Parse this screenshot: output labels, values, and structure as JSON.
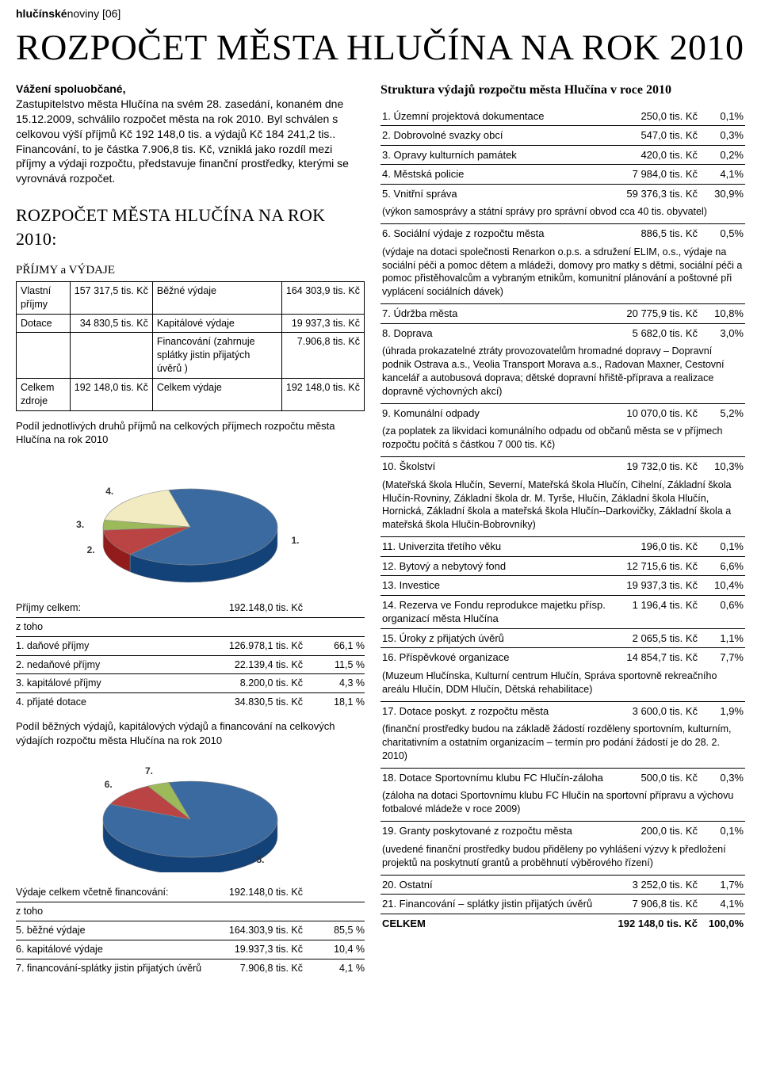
{
  "masthead": {
    "bold": "hlučínské",
    "rest": "noviny [06]"
  },
  "title": "ROZPOČET MĚSTA HLUČÍNA NA ROK 2010",
  "intro": {
    "greeting": "Vážení spoluobčané,",
    "body": "Zastupitelstvo města Hlučína na svém 28. zasedání, konaném dne 15.12.2009, schválilo rozpočet města na rok 2010. Byl schválen s celkovou výší příjmů Kč 192 148,0 tis. a výdajů Kč 184 241,2 tis.. Financování, to je částka 7.906,8 tis. Kč, vzniklá jako rozdíl mezi příjmy a výdaji rozpočtu, představuje finanční prostředky, kterými se vyrovnává rozpočet."
  },
  "sectionTitle": "ROZPOČET MĚSTA HLUČÍNA NA ROK 2010:",
  "pvTitle": "PŘÍJMY a VÝDAJE",
  "pv": [
    [
      "Vlastní příjmy",
      "157 317,5 tis. Kč",
      "Běžné výdaje",
      "164 303,9 tis. Kč"
    ],
    [
      "Dotace",
      "34 830,5 tis. Kč",
      "Kapitálové výdaje",
      "19 937,3 tis. Kč"
    ],
    [
      "",
      "",
      "Financování (zahrnuje splátky jistin přijatých úvěrů )",
      "7.906,8 tis. Kč"
    ],
    [
      "Celkem zdroje",
      "192 148,0 tis. Kč",
      "Celkem výdaje",
      "192 148,0 tis. Kč"
    ]
  ],
  "chart1": {
    "caption": "Podíl jednotlivých druhů příjmů na celkových příjmech rozpočtu města Hlučína na rok 2010",
    "labels": [
      "1.",
      "2.",
      "3.",
      "4."
    ],
    "values": [
      66.1,
      11.5,
      4.3,
      18.1
    ],
    "colors": [
      "#3b6aa0",
      "#b94443",
      "#9cba5a",
      "#f2ebc2"
    ],
    "edge": "#888",
    "bg": "#fff"
  },
  "break1": {
    "header": [
      "Příjmy celkem:",
      "192.148,0 tis. Kč",
      ""
    ],
    "sub": "z toho",
    "rows": [
      [
        "1. daňové příjmy",
        "126.978,1 tis. Kč",
        "66,1 %"
      ],
      [
        "2. nedaňové příjmy",
        "22.139,4 tis. Kč",
        "11,5 %"
      ],
      [
        "3. kapitálové příjmy",
        "8.200,0 tis. Kč",
        "4,3 %"
      ],
      [
        "4. přijaté dotace",
        "34.830,5 tis. Kč",
        "18,1 %"
      ]
    ]
  },
  "chart2": {
    "caption": "Podíl běžných výdajů, kapitálových výdajů a financování na celkových výdajích rozpočtu města Hlučína na rok 2010",
    "labels": [
      "5.",
      "6.",
      "7."
    ],
    "values": [
      85.5,
      10.4,
      4.1
    ],
    "colors": [
      "#3b6aa0",
      "#b94443",
      "#9cba5a"
    ],
    "edge": "#888",
    "bg": "#fff"
  },
  "break2": {
    "header": [
      "Výdaje celkem včetně financování:",
      "192.148,0 tis. Kč",
      ""
    ],
    "sub": "z toho",
    "rows": [
      [
        "5. běžné výdaje",
        "164.303,9 tis. Kč",
        "85,5 %"
      ],
      [
        "6. kapitálové výdaje",
        "19.937,3 tis. Kč",
        "10,4 %"
      ],
      [
        "7. financování-splátky jistin přijatých úvěrů",
        "7.906,8 tis. Kč",
        "4,1 %"
      ]
    ]
  },
  "structTitle": "Struktura výdajů rozpočtu města Hlučína v roce 2010",
  "struct": [
    {
      "t": "row",
      "c": [
        "1. Územní projektová dokumentace",
        "250,0 tis. Kč",
        "0,1%"
      ]
    },
    {
      "t": "sep"
    },
    {
      "t": "row",
      "c": [
        "2. Dobrovolné svazky obcí",
        "547,0 tis. Kč",
        "0,3%"
      ]
    },
    {
      "t": "sep"
    },
    {
      "t": "row",
      "c": [
        "3. Opravy kulturních památek",
        "420,0 tis. Kč",
        "0,2%"
      ]
    },
    {
      "t": "sep"
    },
    {
      "t": "row",
      "c": [
        "4. Městská policie",
        "7 984,0 tis. Kč",
        "4,1%"
      ]
    },
    {
      "t": "sep"
    },
    {
      "t": "row",
      "c": [
        "5. Vnitřní správa",
        "59 376,3 tis. Kč",
        "30,9%"
      ]
    },
    {
      "t": "note",
      "c": "(výkon samosprávy a státní správy pro správní obvod cca 40 tis. obyvatel)"
    },
    {
      "t": "sep"
    },
    {
      "t": "row",
      "c": [
        "6. Sociální výdaje z rozpočtu města",
        "886,5 tis. Kč",
        "0,5%"
      ]
    },
    {
      "t": "note",
      "c": "(výdaje na dotaci společnosti Renarkon o.p.s. a sdružení ELIM, o.s., výdaje na sociální péči a pomoc dětem a mládeži, domovy pro matky s dětmi, sociální péči a pomoc přistěhovalcům a vybraným etnikům, komunitní plánování a poštovné při vyplácení sociálních dávek)"
    },
    {
      "t": "sep"
    },
    {
      "t": "row",
      "c": [
        "7. Údržba města",
        "20 775,9 tis. Kč",
        "10,8%"
      ]
    },
    {
      "t": "sep"
    },
    {
      "t": "row",
      "c": [
        "8. Doprava",
        "5 682,0 tis. Kč",
        "3,0%"
      ]
    },
    {
      "t": "note",
      "c": "(úhrada prokazatelné ztráty provozovatelům hromadné dopravy – Dopravní podnik Ostrava a.s., Veolia Transport Morava a.s., Radovan Maxner, Cestovní kancelář a autobusová doprava; dětské dopravní hřiště-příprava a realizace dopravně výchovných akcí)"
    },
    {
      "t": "sep"
    },
    {
      "t": "row",
      "c": [
        "9. Komunální odpady",
        "10 070,0 tis. Kč",
        "5,2%"
      ]
    },
    {
      "t": "note",
      "c": "(za poplatek za likvidaci komunálního odpadu od občanů města se v příjmech rozpočtu počítá s částkou 7 000 tis. Kč)"
    },
    {
      "t": "sep"
    },
    {
      "t": "row",
      "c": [
        "10. Školství",
        "19 732,0 tis. Kč",
        "10,3%"
      ]
    },
    {
      "t": "note",
      "c": "(Mateřská škola Hlučín, Severní, Mateřská škola Hlučín, Cihelní, Základní škola Hlučín-Rovniny, Základní škola dr. M. Tyrše, Hlučín, Základní škola Hlučín, Hornická, Základní škola a mateřská škola Hlučín--Darkovičky, Základní škola a mateřská škola Hlučín-Bobrovníky)"
    },
    {
      "t": "sep"
    },
    {
      "t": "row",
      "c": [
        "11. Univerzita třetího věku",
        "196,0 tis. Kč",
        "0,1%"
      ]
    },
    {
      "t": "sep"
    },
    {
      "t": "row",
      "c": [
        "12. Bytový a nebytový fond",
        "12 715,6 tis. Kč",
        "6,6%"
      ]
    },
    {
      "t": "sep"
    },
    {
      "t": "row",
      "c": [
        "13. Investice",
        "19 937,3 tis. Kč",
        "10,4%"
      ]
    },
    {
      "t": "sep"
    },
    {
      "t": "row",
      "c": [
        "14. Rezerva ve Fondu reprodukce majetku přísp. organizací města Hlučína",
        "1 196,4 tis. Kč",
        "0,6%"
      ]
    },
    {
      "t": "sep"
    },
    {
      "t": "row",
      "c": [
        "15. Úroky z přijatých úvěrů",
        "2 065,5 tis. Kč",
        "1,1%"
      ]
    },
    {
      "t": "sep"
    },
    {
      "t": "row",
      "c": [
        "16. Příspěvkové organizace",
        "14 854,7 tis. Kč",
        "7,7%"
      ]
    },
    {
      "t": "note",
      "c": "(Muzeum Hlučínska, Kulturní centrum Hlučín, Správa sportovně rekreačního areálu Hlučín, DDM Hlučín, Dětská rehabilitace)"
    },
    {
      "t": "sep"
    },
    {
      "t": "row",
      "c": [
        "17. Dotace poskyt. z rozpočtu města",
        "3 600,0 tis. Kč",
        "1,9%"
      ]
    },
    {
      "t": "note",
      "c": "(finanční prostředky budou na základě žádostí rozděleny sportovním, kulturním, charitativním a ostatním organizacím – termín pro podání žádostí je do 28. 2. 2010)"
    },
    {
      "t": "sep"
    },
    {
      "t": "row",
      "c": [
        "18. Dotace Sportovnímu klubu FC Hlučín-záloha",
        "500,0 tis. Kč",
        "0,3%"
      ]
    },
    {
      "t": "note",
      "c": "(záloha na dotaci Sportovnímu klubu FC Hlučín na sportovní přípravu a výchovu fotbalové mládeže v roce 2009)"
    },
    {
      "t": "sep"
    },
    {
      "t": "row",
      "c": [
        "19. Granty poskytované z rozpočtu města",
        "200,0 tis. Kč",
        "0,1%"
      ]
    },
    {
      "t": "note",
      "c": "(uvedené finanční prostředky budou přiděleny po vyhlášení výzvy k předložení projektů na poskytnutí grantů a proběhnutí výběrového řízení)"
    },
    {
      "t": "sep"
    },
    {
      "t": "row",
      "c": [
        "20. Ostatní",
        "3 252,0 tis. Kč",
        "1,7%"
      ]
    },
    {
      "t": "sep"
    },
    {
      "t": "row",
      "c": [
        "21. Financování – splátky jistin přijatých úvěrů",
        "7 906,8 tis. Kč",
        "4,1%"
      ]
    },
    {
      "t": "sep"
    },
    {
      "t": "total",
      "c": [
        "CELKEM",
        "192 148,0 tis. Kč",
        "100,0%"
      ]
    }
  ]
}
